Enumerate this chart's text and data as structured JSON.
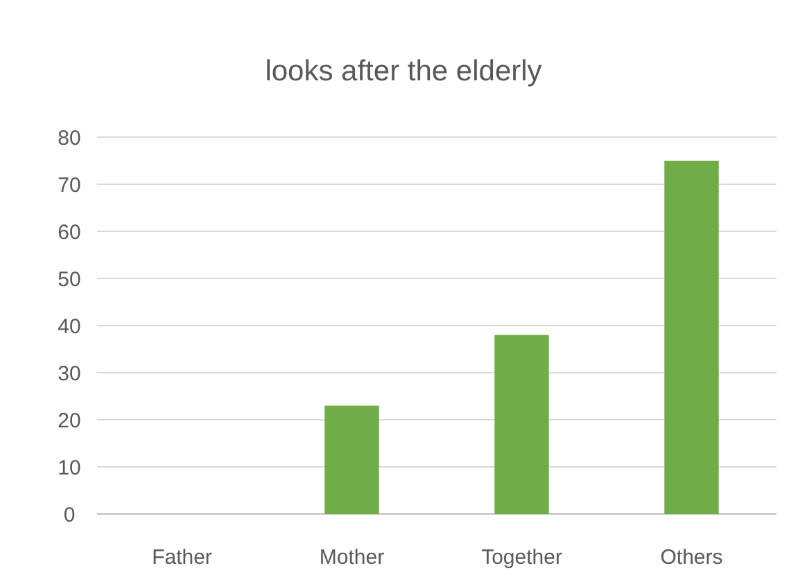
{
  "chart_data": {
    "type": "bar",
    "title": "looks after the elderly",
    "categories": [
      "Father",
      "Mother",
      "Together",
      "Others"
    ],
    "values": [
      0,
      23,
      38,
      75
    ],
    "color": "#70ad47",
    "ylim": [
      0,
      80
    ],
    "yticks": [
      0,
      10,
      20,
      30,
      40,
      50,
      60,
      70,
      80
    ],
    "grid": "y"
  }
}
